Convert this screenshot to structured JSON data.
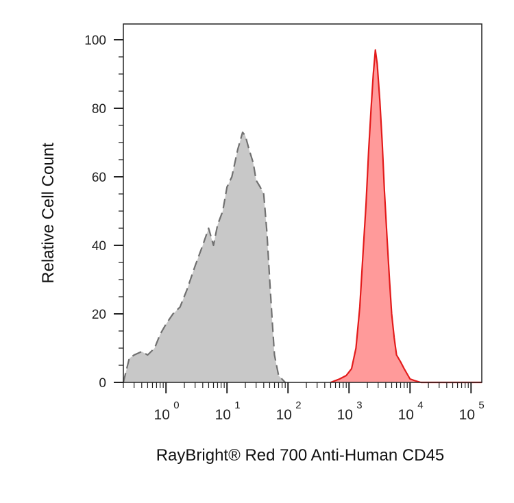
{
  "chart_data": {
    "type": "area",
    "xlabel": "RayBright® Red 700 Anti-Human CD45",
    "ylabel": "Relative Cell Count",
    "x_scale": "log",
    "xlim": [
      0.2,
      150000
    ],
    "ylim": [
      0,
      100
    ],
    "y_ticks": [
      "0",
      "20",
      "40",
      "60",
      "80",
      "100"
    ],
    "x_ticks": [
      {
        "base": "10",
        "exp": "0",
        "value": 1
      },
      {
        "base": "10",
        "exp": "1",
        "value": 10
      },
      {
        "base": "10",
        "exp": "2",
        "value": 100
      },
      {
        "base": "10",
        "exp": "3",
        "value": 1000
      },
      {
        "base": "10",
        "exp": "4",
        "value": 10000
      },
      {
        "base": "10",
        "exp": "5",
        "value": 100000
      }
    ],
    "grid": false,
    "series": [
      {
        "style": "dashed-gray-fill",
        "fill": "#c8c8c8",
        "stroke": "#707070",
        "x": [
          0.2,
          0.25,
          0.3,
          0.4,
          0.5,
          0.65,
          0.8,
          1.0,
          1.3,
          1.7,
          2.2,
          3.0,
          4.0,
          5.0,
          6.0,
          7.0,
          8.5,
          10,
          12,
          15,
          18,
          20,
          23,
          27,
          30,
          35,
          40,
          45,
          50,
          55,
          60,
          70,
          90
        ],
        "y": [
          0,
          7,
          8,
          9,
          8,
          10,
          14,
          17,
          20,
          22,
          27,
          34,
          40,
          45,
          40,
          46,
          50,
          57,
          60,
          68,
          73,
          72,
          68,
          64,
          59,
          57,
          55,
          44,
          30,
          18,
          8,
          2,
          0
        ]
      },
      {
        "style": "solid-red-fill",
        "fill": "#ff9a9a",
        "stroke": "#e31b1b",
        "x": [
          500,
          700,
          900,
          1100,
          1300,
          1500,
          1700,
          1900,
          2100,
          2300,
          2500,
          2700,
          2900,
          3200,
          3500,
          3800,
          4200,
          4600,
          5000,
          5500,
          6000,
          7000,
          8000,
          10000,
          12000,
          15000
        ],
        "y": [
          0,
          1,
          2,
          4,
          10,
          22,
          38,
          52,
          68,
          80,
          90,
          97,
          93,
          82,
          70,
          56,
          42,
          30,
          20,
          13,
          8,
          6,
          4,
          1,
          0.5,
          0
        ]
      },
      {
        "style": "red-baseline",
        "stroke": "#e31b1b",
        "x": [
          15000,
          150000
        ],
        "y": [
          0,
          0
        ]
      }
    ]
  }
}
